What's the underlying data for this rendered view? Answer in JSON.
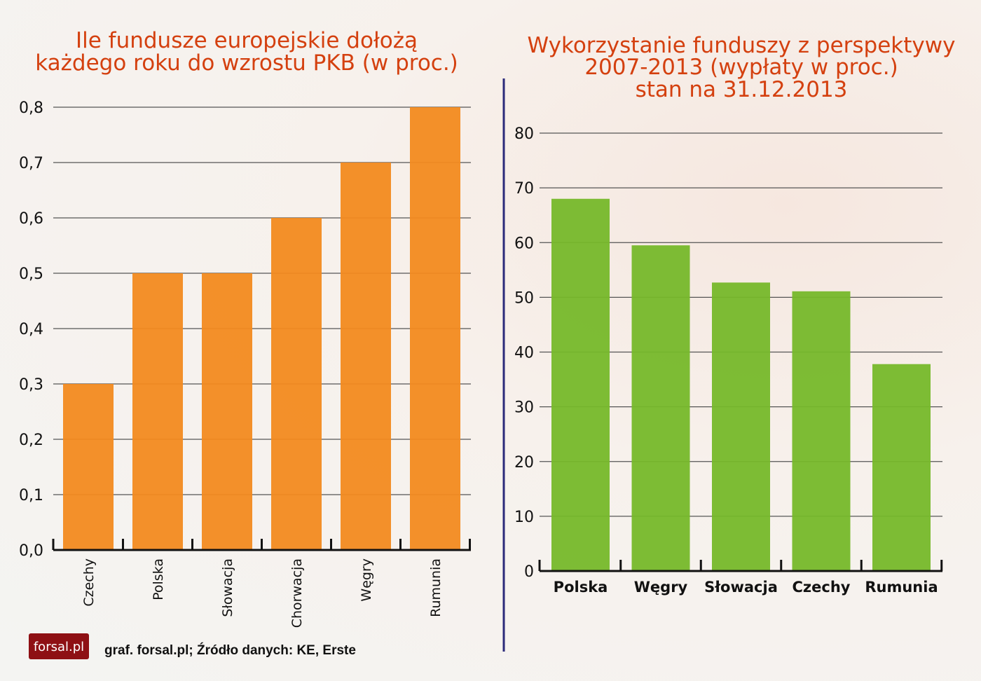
{
  "chart_data": [
    {
      "type": "bar",
      "title_lines": [
        "Ile fundusze europejskie dołożą",
        "każdego roku do wzrostu PKB (w proc.)"
      ],
      "categories": [
        "Czechy",
        "Polska",
        "Słowacja",
        "Chorwacja",
        "Węgry",
        "Rumunia"
      ],
      "values": [
        0.3,
        0.5,
        0.5,
        0.6,
        0.7,
        0.8
      ],
      "ylim": [
        0,
        0.8
      ],
      "yticks": [
        0,
        0.1,
        0.2,
        0.3,
        0.4,
        0.5,
        0.6,
        0.7,
        0.8
      ],
      "ytick_labels": [
        "0,0",
        "0,1",
        "0,2",
        "0,3",
        "0,4",
        "0,5",
        "0,6",
        "0,7",
        "0,8"
      ],
      "grid": true,
      "color": "#f28a1f",
      "xlabel": "",
      "ylabel": ""
    },
    {
      "type": "bar",
      "title_lines": [
        "Wykorzystanie funduszy z perspektywy",
        "2007-2013 (wypłaty w proc.)",
        "stan na 31.12.2013"
      ],
      "categories": [
        "Polska",
        "Węgry",
        "Słowacja",
        "Czechy",
        "Rumunia"
      ],
      "values": [
        68,
        59.5,
        52.7,
        51.1,
        37.8
      ],
      "ylim": [
        0,
        80
      ],
      "yticks": [
        0,
        10,
        20,
        30,
        40,
        50,
        60,
        70,
        80
      ],
      "ytick_labels": [
        "0",
        "10",
        "20",
        "30",
        "40",
        "50",
        "60",
        "70",
        "80"
      ],
      "grid": true,
      "color": "#76b82a",
      "xlabel": "",
      "ylabel": ""
    }
  ],
  "footer": {
    "logo": "forsal.pl",
    "source": "graf. forsal.pl; Źródło danych: KE, Erste"
  },
  "colors": {
    "title": "#d4400f",
    "divider": "#2b2a7a",
    "logo_bg": "#8e1014"
  }
}
